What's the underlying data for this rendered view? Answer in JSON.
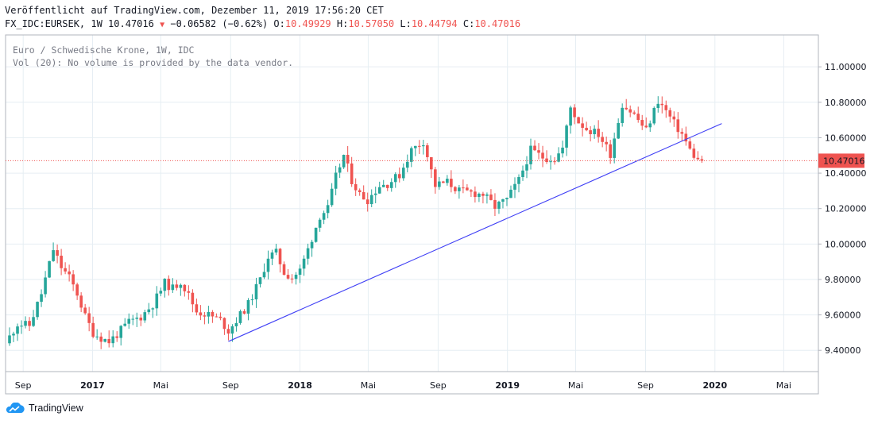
{
  "header": {
    "published": "Veröffentlicht auf TradingView.com, Dezember 11, 2019 17:56:20 CET",
    "symbol_line": "FX_IDC:EURSEK, 1W 10.47016",
    "change": "−0.06582 (−0.62%)",
    "open_label": "O:",
    "open": "10.49929",
    "high_label": "H:",
    "high": "10.57050",
    "low_label": "L:",
    "low": "10.44794",
    "close_label": "C:",
    "close": "10.47016"
  },
  "legend": {
    "series_title": "Euro / Schwedische Krone, 1W, IDC",
    "volume_note": "Vol (20): No volume is provided by the data vendor."
  },
  "footer": {
    "brand": "TradingView"
  },
  "colors": {
    "up": "#26a69a",
    "down": "#ef5350",
    "trendline": "#3f3ff5",
    "price_tag": "#ef5350",
    "grid": "#e6eef3"
  },
  "icons": {
    "footer_logo": "tradingview-cloud-icon",
    "change_marker": "down-triangle-icon"
  },
  "chart_data": {
    "type": "candlestick",
    "timeframe": "1W",
    "grid": true,
    "y_axis": {
      "side": "right",
      "ylim": [
        9.28,
        11.18
      ],
      "ticks": [
        "9.40000",
        "9.60000",
        "9.80000",
        "10.00000",
        "10.20000",
        "10.40000",
        "10.60000",
        "10.80000",
        "11.00000"
      ]
    },
    "x_axis": {
      "ticks": [
        "Sep",
        "2017",
        "Mai",
        "Sep",
        "2018",
        "Mai",
        "Sep",
        "2019",
        "Mai",
        "Sep",
        "2020",
        "Mai"
      ]
    },
    "last_price": "10.47016",
    "anchors": [
      [
        "2016-08-08",
        9.44
      ],
      [
        "2016-08-29",
        9.55
      ],
      [
        "2016-09-19",
        9.54
      ],
      [
        "2016-10-10",
        9.72
      ],
      [
        "2016-10-31",
        9.97
      ],
      [
        "2016-11-14",
        9.87
      ],
      [
        "2016-11-28",
        9.81
      ],
      [
        "2016-12-12",
        9.72
      ],
      [
        "2016-12-26",
        9.59
      ],
      [
        "2017-01-09",
        9.5
      ],
      [
        "2017-01-23",
        9.47
      ],
      [
        "2017-02-06",
        9.45
      ],
      [
        "2017-02-20",
        9.49
      ],
      [
        "2017-03-13",
        9.56
      ],
      [
        "2017-04-03",
        9.59
      ],
      [
        "2017-04-24",
        9.66
      ],
      [
        "2017-05-15",
        9.78
      ],
      [
        "2017-05-29",
        9.75
      ],
      [
        "2017-06-12",
        9.79
      ],
      [
        "2017-06-26",
        9.71
      ],
      [
        "2017-07-10",
        9.62
      ],
      [
        "2017-07-31",
        9.6
      ],
      [
        "2017-08-21",
        9.57
      ],
      [
        "2017-09-04",
        9.51
      ],
      [
        "2017-09-18",
        9.57
      ],
      [
        "2017-10-09",
        9.66
      ],
      [
        "2017-10-30",
        9.8
      ],
      [
        "2017-11-13",
        9.93
      ],
      [
        "2017-11-27",
        9.95
      ],
      [
        "2017-12-11",
        9.84
      ],
      [
        "2017-12-25",
        9.81
      ],
      [
        "2018-01-08",
        9.85
      ],
      [
        "2018-01-22",
        9.97
      ],
      [
        "2018-02-12",
        10.16
      ],
      [
        "2018-02-26",
        10.2
      ],
      [
        "2018-03-12",
        10.38
      ],
      [
        "2018-03-26",
        10.5
      ],
      [
        "2018-04-09",
        10.36
      ],
      [
        "2018-04-23",
        10.28
      ],
      [
        "2018-05-07",
        10.25
      ],
      [
        "2018-05-28",
        10.33
      ],
      [
        "2018-06-11",
        10.34
      ],
      [
        "2018-07-02",
        10.39
      ],
      [
        "2018-07-23",
        10.53
      ],
      [
        "2018-08-13",
        10.58
      ],
      [
        "2018-09-03",
        10.33
      ],
      [
        "2018-09-24",
        10.35
      ],
      [
        "2018-10-15",
        10.3
      ],
      [
        "2018-11-05",
        10.29
      ],
      [
        "2018-11-26",
        10.28
      ],
      [
        "2018-12-17",
        10.21
      ],
      [
        "2019-01-07",
        10.25
      ],
      [
        "2019-01-28",
        10.36
      ],
      [
        "2019-02-18",
        10.53
      ],
      [
        "2019-03-11",
        10.49
      ],
      [
        "2019-04-01",
        10.48
      ],
      [
        "2019-04-15",
        10.54
      ],
      [
        "2019-04-29",
        10.77
      ],
      [
        "2019-05-13",
        10.69
      ],
      [
        "2019-05-27",
        10.65
      ],
      [
        "2019-06-17",
        10.62
      ],
      [
        "2019-07-08",
        10.51
      ],
      [
        "2019-07-29",
        10.79
      ],
      [
        "2019-08-19",
        10.73
      ],
      [
        "2019-09-09",
        10.64
      ],
      [
        "2019-09-30",
        10.81
      ],
      [
        "2019-10-14",
        10.75
      ],
      [
        "2019-10-28",
        10.68
      ],
      [
        "2019-11-11",
        10.62
      ],
      [
        "2019-11-25",
        10.53
      ],
      [
        "2019-12-09",
        10.47
      ]
    ],
    "trendline": {
      "start": [
        "2017-08-28",
        9.45
      ],
      "end": [
        "2020-01-13",
        10.68
      ]
    }
  }
}
